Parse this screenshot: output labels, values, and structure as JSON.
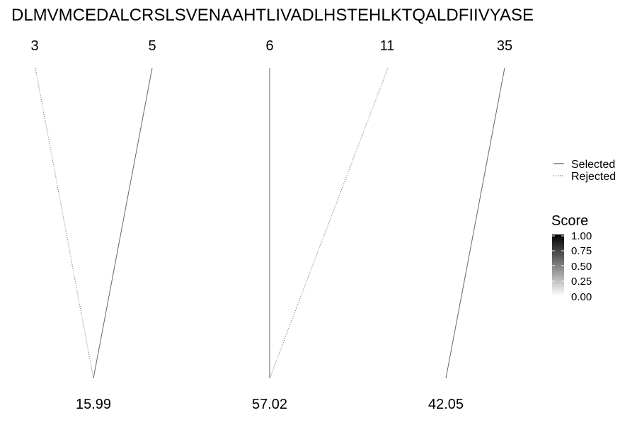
{
  "sequence": "DLMVMCEDALCRSLSVENAAHTLIVADLHSTEHLKTQALDFIIVYASE",
  "top_labels": [
    "3",
    "5",
    "6",
    "11",
    "35"
  ],
  "bottom_labels": [
    "15.99",
    "57.02",
    "42.05"
  ],
  "links": [
    {
      "from": "3",
      "to": "15.99",
      "status": "Rejected"
    },
    {
      "from": "5",
      "to": "15.99",
      "status": "Selected"
    },
    {
      "from": "6",
      "to": "57.02",
      "status": "Selected"
    },
    {
      "from": "11",
      "to": "57.02",
      "status": "Rejected"
    },
    {
      "from": "35",
      "to": "42.05",
      "status": "Selected"
    }
  ],
  "legend": {
    "line_types": [
      {
        "label": "Selected",
        "style": "solid"
      },
      {
        "label": "Rejected",
        "style": "dotted"
      }
    ],
    "score": {
      "title": "Score",
      "ticks": [
        "1.00",
        "0.75",
        "0.50",
        "0.25",
        "0.00"
      ],
      "range": [
        0,
        1
      ],
      "color_high": "#000000",
      "color_low": "#ffffff"
    }
  },
  "colors": {
    "line": "#666666"
  }
}
